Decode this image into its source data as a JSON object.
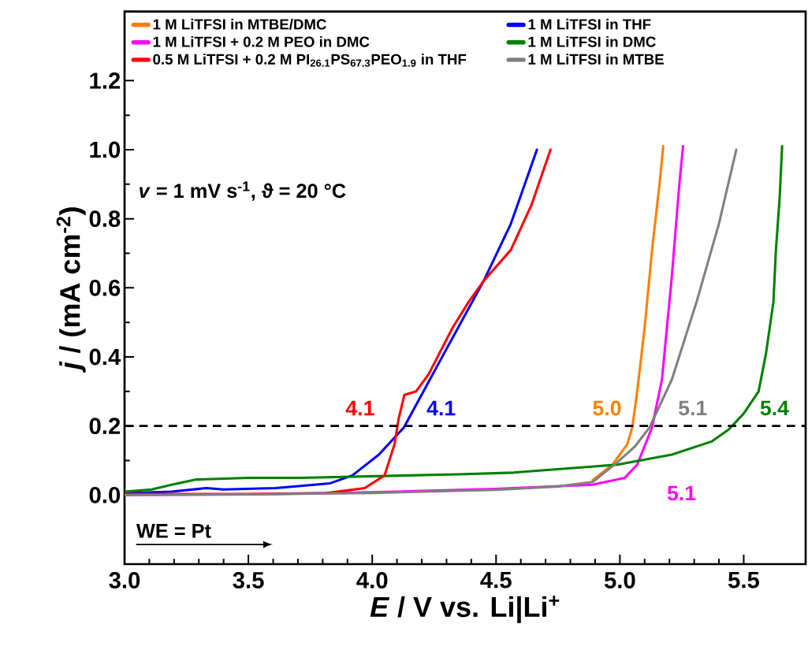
{
  "chart_data": {
    "type": "line",
    "xlabel": "*E* / V vs. Li|Li$^{+}$",
    "ylabel": "*j* / (mA cm$^{-2}$)",
    "xlim": [
      3.0,
      5.75
    ],
    "xticks": [
      {
        "value": 3.0,
        "label": "3.0"
      },
      {
        "value": 3.5,
        "label": "3.5"
      },
      {
        "value": 4.0,
        "label": "4.0"
      },
      {
        "value": 4.5,
        "label": "4.5"
      },
      {
        "value": 5.0,
        "label": "5.0"
      },
      {
        "value": 5.5,
        "label": "5.5"
      }
    ],
    "ylim": [
      -0.2,
      1.4
    ],
    "yticks": [
      {
        "value": 0.0,
        "label": "0.0"
      },
      {
        "value": 0.2,
        "label": "0.2"
      },
      {
        "value": 0.4,
        "label": "0.4"
      },
      {
        "value": 0.6,
        "label": "0.6"
      },
      {
        "value": 0.8,
        "label": "0.8"
      },
      {
        "value": 1.0,
        "label": "1.0"
      },
      {
        "value": 1.2,
        "label": "1.2"
      }
    ],
    "legend": "top",
    "grid": false,
    "ref_lines": [
      {
        "axis": "y",
        "value": 0.2,
        "color": "#000000",
        "line_style": "dashed"
      }
    ],
    "annotations": [
      "*v* = 1 mV s$^{-1}$, ϑ = 20 °C",
      "WE = Pt",
      {
        "text": "4.1",
        "x": 4.1,
        "y": 0.2
      },
      {
        "text": "4.1",
        "x": 4.13,
        "y": 0.2
      },
      {
        "text": "5.0",
        "x": 5.05,
        "y": 0.2
      },
      {
        "text": "5.1",
        "x": 5.12,
        "y": 0.2
      },
      {
        "text": "5.4",
        "x": 5.45,
        "y": 0.2
      },
      {
        "text": "5.1",
        "x": 5.13,
        "y": 0.2
      }
    ],
    "series": [
      {
        "name": "1 M LiTFSI in MTBE/DMC",
        "color": "#ff7f00",
        "x": [
          4.89,
          4.97,
          5.03,
          5.05,
          5.07,
          5.1,
          5.13,
          5.16,
          5.175
        ],
        "values": [
          0.043,
          0.088,
          0.147,
          0.196,
          0.3,
          0.485,
          0.71,
          0.9,
          1.01
        ]
      },
      {
        "name": "1 M LiTFSI + 0.2 M PEO in DMC",
        "color": "#ff00ff",
        "x": [
          3.0,
          3.5,
          4.0,
          4.5,
          4.57,
          4.89,
          5.02,
          5.07,
          5.11,
          5.13,
          5.17,
          5.21,
          5.24,
          5.255
        ],
        "values": [
          0.0,
          0.002,
          0.008,
          0.018,
          0.02,
          0.03,
          0.05,
          0.088,
          0.16,
          0.196,
          0.335,
          0.635,
          0.9,
          1.01
        ]
      },
      {
        "name": "0.5 M LiTFSI + 0.2 M PI$_{26.1}$PS$_{67.3}$PEO$_{1.9}$ in THF",
        "color": "#ff0000",
        "x": [
          3.0,
          3.5,
          3.81,
          3.97,
          4.05,
          4.09,
          4.107,
          4.13,
          4.177,
          4.228,
          4.325,
          4.39,
          4.45,
          4.56,
          4.643,
          4.72
        ],
        "values": [
          0.003,
          0.003,
          0.005,
          0.02,
          0.057,
          0.147,
          0.222,
          0.29,
          0.3,
          0.35,
          0.485,
          0.56,
          0.62,
          0.71,
          0.84,
          1.0
        ]
      },
      {
        "name": "1 M LiTFSI in THF",
        "color": "#0000ff",
        "x": [
          3.0,
          3.19,
          3.33,
          3.4,
          3.61,
          3.83,
          3.92,
          4.027,
          4.128,
          4.29,
          4.45,
          4.56,
          4.665
        ],
        "values": [
          0.005,
          0.01,
          0.02,
          0.016,
          0.02,
          0.034,
          0.057,
          0.117,
          0.196,
          0.41,
          0.62,
          0.786,
          1.0
        ]
      },
      {
        "name": "1 M LiTFSI in DMC",
        "color": "#008000",
        "x": [
          3.0,
          3.11,
          3.19,
          3.29,
          3.5,
          3.71,
          4.35,
          4.57,
          4.99,
          5.21,
          5.37,
          5.44,
          5.5,
          5.56,
          5.59,
          5.62,
          5.63,
          5.645,
          5.655
        ],
        "values": [
          0.01,
          0.016,
          0.03,
          0.045,
          0.05,
          0.05,
          0.06,
          0.065,
          0.088,
          0.117,
          0.155,
          0.19,
          0.236,
          0.3,
          0.41,
          0.56,
          0.71,
          0.86,
          1.01
        ]
      },
      {
        "name": "1 M LiTFSI in MTBE",
        "color": "#808080",
        "x": [
          3.0,
          3.5,
          4.0,
          4.5,
          4.75,
          4.89,
          4.99,
          5.06,
          5.12,
          5.21,
          5.31,
          5.4,
          5.47
        ],
        "values": [
          0.0,
          0.002,
          0.006,
          0.015,
          0.025,
          0.038,
          0.095,
          0.14,
          0.196,
          0.335,
          0.56,
          0.786,
          1.0
        ]
      }
    ]
  }
}
